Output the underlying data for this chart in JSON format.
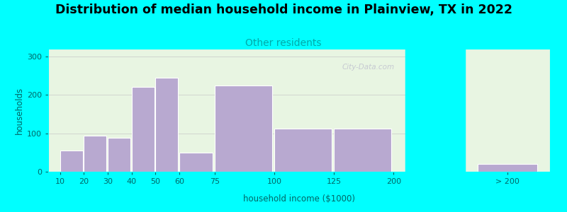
{
  "title": "Distribution of median household income in Plainview, TX in 2022",
  "subtitle": "Other residents",
  "xlabel": "household income ($1000)",
  "ylabel": "households",
  "bar_color": "#b8a9d0",
  "bar_edge_color": "#ffffff",
  "background_outer": "#00ffff",
  "background_plot": "#e8f5e2",
  "title_fontsize": 12.5,
  "subtitle_fontsize": 10,
  "subtitle_color": "#00aaaa",
  "axis_label_fontsize": 8.5,
  "tick_fontsize": 8,
  "ylabel_color": "#006666",
  "xlabel_color": "#006666",
  "tick_color": "#006666",
  "bar_lefts": [
    10,
    20,
    30,
    40,
    50,
    60,
    75,
    100,
    125
  ],
  "bar_widths": [
    9.5,
    9.5,
    9.5,
    9.5,
    9.5,
    14,
    24,
    24,
    24
  ],
  "bar_heights": [
    55,
    93,
    88,
    220,
    245,
    50,
    225,
    112,
    112
  ],
  "extra_bar_height": 20,
  "ylim": [
    0,
    320
  ],
  "ytick_positions": [
    0,
    100,
    200,
    300
  ],
  "grid_color": "#c8c8c8",
  "watermark": "City-Data.com"
}
